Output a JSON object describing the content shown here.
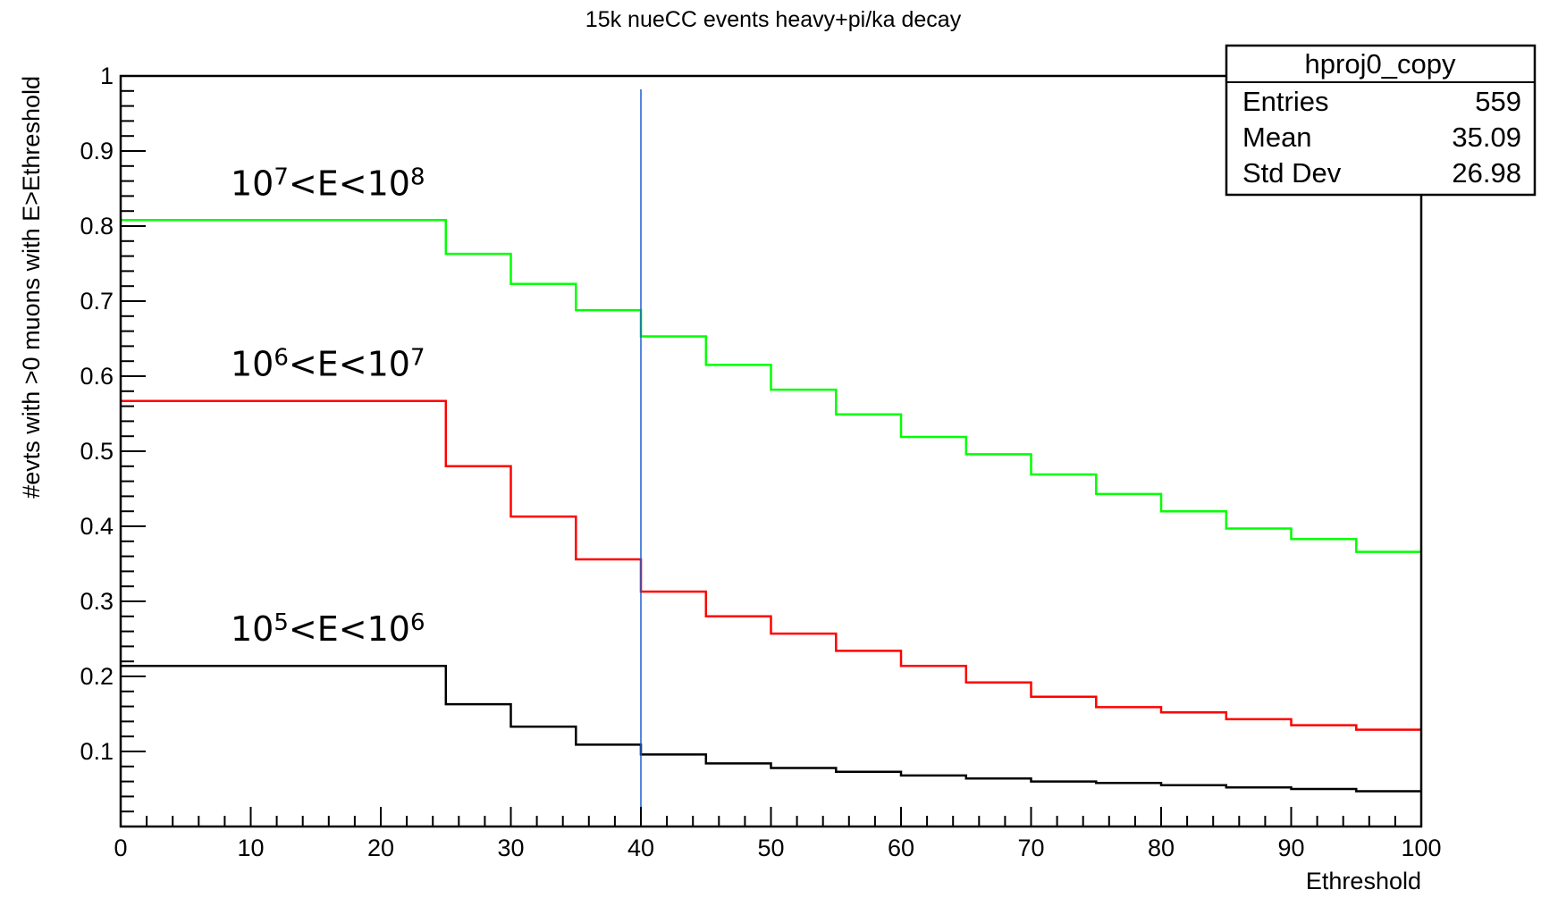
{
  "chart_data": {
    "type": "line",
    "step": true,
    "title": "15k nueCC events heavy+pi/ka decay",
    "xlabel": "Ethreshold",
    "ylabel": "#evts with >0 muons with E>Ethreshold",
    "xlim": [
      0,
      100
    ],
    "ylim": [
      0,
      1
    ],
    "xticks": [
      "0",
      "10",
      "20",
      "30",
      "40",
      "50",
      "60",
      "70",
      "80",
      "90",
      "100"
    ],
    "yticks": [
      "0.1",
      "0.2",
      "0.3",
      "0.4",
      "0.5",
      "0.6",
      "0.7",
      "0.8",
      "0.9",
      "1"
    ],
    "bin_edges": [
      0,
      25,
      30,
      35,
      40,
      45,
      50,
      55,
      60,
      65,
      70,
      75,
      80,
      85,
      90,
      95,
      100
    ],
    "series": [
      {
        "name": "10^7<E<10^8",
        "label_parts": [
          "10",
          "7",
          "<E<10",
          "8"
        ],
        "color": "#00ff00",
        "values": [
          0.808,
          0.763,
          0.723,
          0.688,
          0.653,
          0.615,
          0.582,
          0.549,
          0.519,
          0.496,
          0.469,
          0.443,
          0.42,
          0.397,
          0.383,
          0.366
        ]
      },
      {
        "name": "10^6<E<10^7",
        "label_parts": [
          "10",
          "6",
          "<E<10",
          "7"
        ],
        "color": "#ff0000",
        "values": [
          0.567,
          0.48,
          0.413,
          0.356,
          0.313,
          0.28,
          0.257,
          0.234,
          0.214,
          0.192,
          0.173,
          0.159,
          0.152,
          0.143,
          0.135,
          0.129
        ]
      },
      {
        "name": "10^5<E<10^6",
        "label_parts": [
          "10",
          "5",
          "<E<10",
          "6"
        ],
        "color": "#000000",
        "values": [
          0.214,
          0.163,
          0.133,
          0.109,
          0.096,
          0.084,
          0.078,
          0.073,
          0.068,
          0.064,
          0.06,
          0.058,
          0.055,
          0.052,
          0.05,
          0.047
        ]
      }
    ],
    "marker_line": {
      "x": 40,
      "color": "#1f5fcf"
    },
    "stats_box": {
      "name": "hproj0_copy",
      "rows": [
        {
          "label": "Entries",
          "value": "559"
        },
        {
          "label": "Mean",
          "value": "35.09"
        },
        {
          "label": "Std Dev",
          "value": "26.98"
        }
      ]
    },
    "grid": false,
    "legend": "none"
  }
}
